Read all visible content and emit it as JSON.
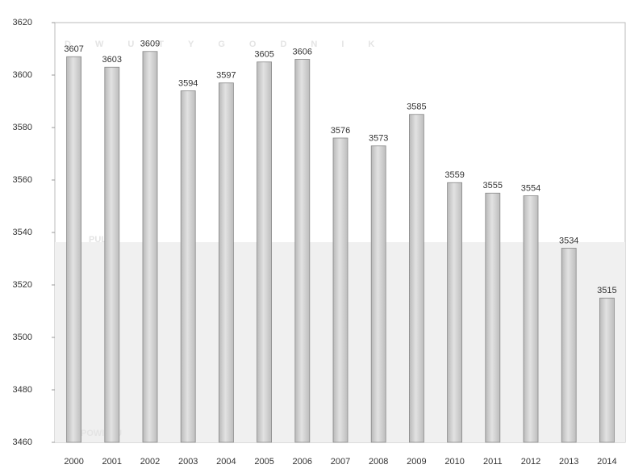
{
  "chart_data": {
    "type": "bar",
    "categories": [
      "2000",
      "2001",
      "2002",
      "2003",
      "2004",
      "2005",
      "2006",
      "2007",
      "2008",
      "2009",
      "2010",
      "2011",
      "2012",
      "2013",
      "2014"
    ],
    "values": [
      3607,
      3603,
      3609,
      3594,
      3597,
      3605,
      3606,
      3576,
      3573,
      3585,
      3559,
      3555,
      3554,
      3534,
      3515
    ],
    "color": "#cfcfcf",
    "ylim": [
      3460,
      3620
    ],
    "yticks": [
      3460,
      3480,
      3500,
      3520,
      3540,
      3560,
      3580,
      3600,
      3620
    ],
    "grid": false,
    "annotations": [
      "DWUTYGODNIK",
      "PULS",
      "POWIATU"
    ]
  }
}
